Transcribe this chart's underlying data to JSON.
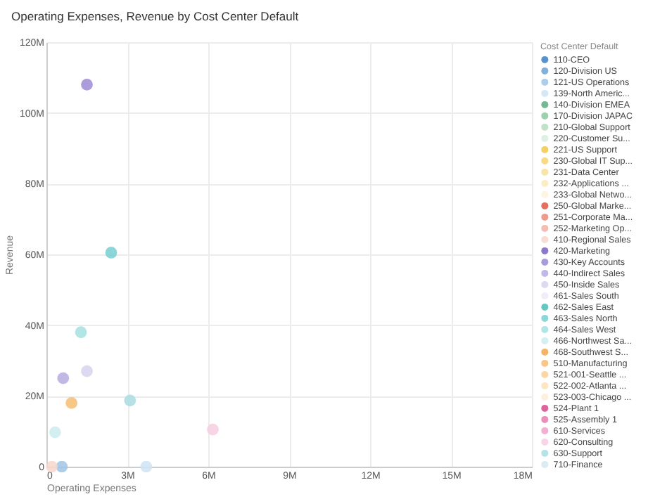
{
  "chart_data": {
    "type": "scatter",
    "title": "Operating Expenses, Revenue by Cost Center Default",
    "xlabel": "Operating Expenses",
    "ylabel": "Revenue",
    "legend_title": "Cost Center Default",
    "legend": "right",
    "grid": true,
    "marker": "circle",
    "xlim": [
      0,
      18000000
    ],
    "xticks": [
      0,
      {
        "value": 3000000,
        "label": "3M"
      },
      {
        "value": 6000000,
        "label": "6M"
      },
      {
        "value": 9000000,
        "label": "9M"
      },
      {
        "value": 12000000,
        "label": "12M"
      },
      {
        "value": 15000000,
        "label": "15M"
      },
      {
        "value": 18000000,
        "label": "18M"
      }
    ],
    "ylim": [
      0,
      120000000
    ],
    "yticks": [
      0,
      {
        "value": 20000000,
        "label": "20M"
      },
      {
        "value": 40000000,
        "label": "40M"
      },
      {
        "value": 60000000,
        "label": "60M"
      },
      {
        "value": 80000000,
        "label": "80M"
      },
      {
        "value": 100000000,
        "label": "100M"
      },
      {
        "value": 120000000,
        "label": "120M"
      }
    ],
    "series": [
      {
        "name": "110-CEO",
        "color": "#3d80c2"
      },
      {
        "name": "120-Division US",
        "color": "#6fa3d3"
      },
      {
        "name": "121-US Operations",
        "color": "#9fc4e4",
        "x": [
          570000
        ],
        "values": [
          0
        ]
      },
      {
        "name": "139-North Americ...",
        "color": "#cfe4f4",
        "x": [
          3700000
        ],
        "values": [
          0
        ]
      },
      {
        "name": "140-Division EMEA",
        "color": "#5eae82"
      },
      {
        "name": "170-Division JAPAC",
        "color": "#8cc8a0"
      },
      {
        "name": "210-Global Support",
        "color": "#b4ddc0"
      },
      {
        "name": "220-Customer Su...",
        "color": "#d9eedf"
      },
      {
        "name": "221-US Support",
        "color": "#f1c84a"
      },
      {
        "name": "230-Global IT Sup...",
        "color": "#f4d46e"
      },
      {
        "name": "231-Data Center",
        "color": "#f7e199"
      },
      {
        "name": "232-Applications ...",
        "color": "#faebbb"
      },
      {
        "name": "233-Global Netwo...",
        "color": "#fcf4da"
      },
      {
        "name": "250-Global Marke...",
        "color": "#de5843"
      },
      {
        "name": "251-Corporate Ma...",
        "color": "#e98b7a"
      },
      {
        "name": "252-Marketing Op...",
        "color": "#f1b2a6"
      },
      {
        "name": "410-Regional Sales",
        "color": "#f8d6cd",
        "x": [
          200000
        ],
        "values": [
          0
        ]
      },
      {
        "name": "420-Marketing",
        "color": "#7a62bf"
      },
      {
        "name": "430-Key Accounts",
        "color": "#9c8bd3",
        "x": [
          1500000
        ],
        "values": [
          108000000
        ]
      },
      {
        "name": "440-Indirect Sales",
        "color": "#b7abe0",
        "x": [
          620000
        ],
        "values": [
          25000000
        ]
      },
      {
        "name": "450-Inside Sales",
        "color": "#d8d2ee",
        "x": [
          1500000
        ],
        "values": [
          27000000
        ]
      },
      {
        "name": "461-Sales South",
        "color": "#eee9f7"
      },
      {
        "name": "462-Sales East",
        "color": "#4dbdb6"
      },
      {
        "name": "463-Sales North",
        "color": "#79cfd0",
        "x": [
          2400000
        ],
        "values": [
          60500000
        ]
      },
      {
        "name": "464-Sales West",
        "color": "#a5e0e2",
        "x": [
          1280000
        ],
        "values": [
          38000000
        ]
      },
      {
        "name": "466-Northwest Sa...",
        "color": "#ccecee",
        "x": [
          320000
        ],
        "values": [
          9700000
        ]
      },
      {
        "name": "468-Southwest S...",
        "color": "#f4a64e"
      },
      {
        "name": "510-Manufacturing",
        "color": "#f6bd72",
        "x": [
          930000
        ],
        "values": [
          18000000
        ]
      },
      {
        "name": "521-001-Seattle ...",
        "color": "#f9d196"
      },
      {
        "name": "522-002-Atlanta ...",
        "color": "#fbe0b6"
      },
      {
        "name": "523-003-Chicago ...",
        "color": "#fdeed8"
      },
      {
        "name": "524-Plant 1",
        "color": "#d8498c"
      },
      {
        "name": "525-Assembly 1",
        "color": "#e57bad"
      },
      {
        "name": "610-Services",
        "color": "#eea2c7"
      },
      {
        "name": "620-Consulting",
        "color": "#f6cce2",
        "x": [
          6170000
        ],
        "values": [
          10500000
        ]
      },
      {
        "name": "630-Support",
        "color": "#a9dde3",
        "x": [
          3100000
        ],
        "values": [
          18700000
        ]
      },
      {
        "name": "710-Finance",
        "color": "#d3e7ee"
      }
    ]
  }
}
